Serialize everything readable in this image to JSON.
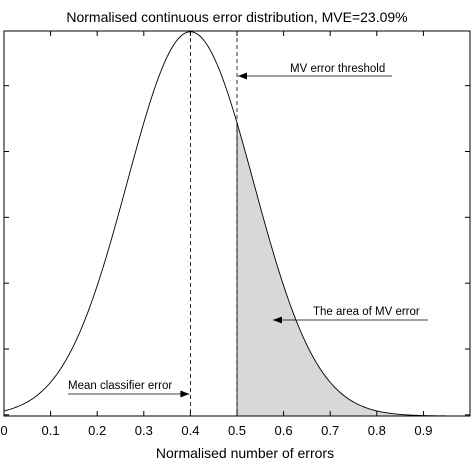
{
  "chart_data": {
    "type": "area",
    "title": "Normalised continuous error distribution, MVE=23.09%",
    "xlabel": "Normalised number of errors",
    "ylabel": "",
    "xlim": [
      0,
      1.0
    ],
    "ylim": [
      0,
      1.0
    ],
    "x_ticks": [
      "0",
      "0.1",
      "0.2",
      "0.3",
      "0.4",
      "0.5",
      "0.6",
      "0.7",
      "0.8",
      "0.9"
    ],
    "grid": false,
    "distribution": {
      "mean": 0.4,
      "std": 0.136,
      "peak": 0.998
    },
    "series": [
      {
        "x": [
          0,
          0.05,
          0.1,
          0.15,
          0.2,
          0.25,
          0.3,
          0.35,
          0.4,
          0.45,
          0.5,
          0.55,
          0.6,
          0.65,
          0.7,
          0.75,
          0.8,
          0.85,
          0.9
        ],
        "y": [
          0.013,
          0.036,
          0.088,
          0.185,
          0.339,
          0.542,
          0.758,
          0.933,
          0.998,
          0.933,
          0.758,
          0.542,
          0.339,
          0.185,
          0.088,
          0.036,
          0.013,
          0.004,
          0.001
        ]
      }
    ],
    "shaded_region": {
      "from": 0.5,
      "to": 0.9,
      "color": "#d8d8d8"
    },
    "vlines": [
      {
        "x": 0.4,
        "style": "dashed"
      },
      {
        "x": 0.5,
        "style": "dashed"
      }
    ],
    "annotations": [
      {
        "text": "MV error threshold",
        "points_to_x": 0.5,
        "arrow": "left"
      },
      {
        "text": "The area of MV error",
        "points_to_x": 0.575,
        "arrow": "left"
      },
      {
        "text": "Mean classifier error",
        "points_to_x": 0.4,
        "arrow": "right"
      }
    ]
  }
}
